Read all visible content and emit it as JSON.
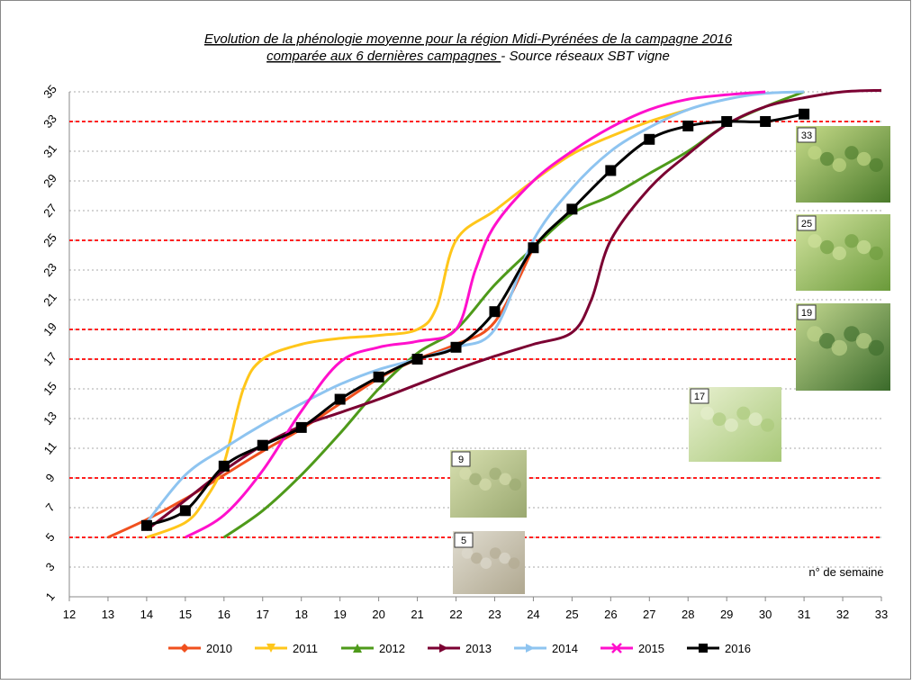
{
  "chart_data": {
    "type": "line",
    "title": "Evolution de la phénologie moyenne pour la région Midi-Pyrénées de la campagne 2016",
    "subtitle_underlined": "comparée aux 6 dernières campagnes ",
    "subtitle_rest": "- Source réseaux SBT vigne",
    "x_annotation": "n° de semaine",
    "xlim": [
      12,
      33
    ],
    "xticks": [
      12,
      13,
      14,
      15,
      16,
      17,
      18,
      19,
      20,
      21,
      22,
      23,
      24,
      25,
      26,
      27,
      28,
      29,
      30,
      31,
      32,
      33
    ],
    "ylim": [
      1,
      35
    ],
    "yticks": [
      1,
      3,
      5,
      7,
      9,
      11,
      13,
      15,
      17,
      19,
      21,
      23,
      25,
      27,
      29,
      31,
      33,
      35
    ],
    "grid": true,
    "reference_lines": [
      5,
      9,
      17,
      19,
      25,
      33
    ],
    "reference_color": "#ff2020",
    "photos": [
      {
        "label": "33"
      },
      {
        "label": "25"
      },
      {
        "label": "19"
      },
      {
        "label": "17"
      },
      {
        "label": "9"
      },
      {
        "label": "5"
      }
    ],
    "series": [
      {
        "name": "2010",
        "color": "#f0501e",
        "marker": "diamond",
        "x": [
          13,
          14,
          15,
          16,
          17,
          18,
          19,
          20,
          21,
          22,
          23,
          24
        ],
        "values": [
          5,
          6.2,
          7.6,
          9.2,
          10.8,
          12.3,
          14,
          15.7,
          17,
          18,
          19.5,
          24.5
        ]
      },
      {
        "name": "2011",
        "color": "#ffc61a",
        "marker": "triangle-down",
        "x": [
          14,
          15,
          15.5,
          16,
          16.5,
          17,
          18,
          19,
          20,
          21,
          21.5,
          22,
          23,
          24,
          25,
          26,
          27,
          28
        ],
        "values": [
          5,
          6,
          7.5,
          10,
          15,
          17,
          18,
          18.4,
          18.6,
          19,
          20.5,
          25,
          27,
          29,
          30.8,
          32,
          33,
          33.8
        ]
      },
      {
        "name": "2012",
        "color": "#4e9a1a",
        "marker": "triangle-up",
        "x": [
          16,
          17,
          18,
          19,
          20,
          21,
          22,
          23,
          24,
          25,
          26,
          27,
          28,
          29,
          30,
          31
        ],
        "values": [
          5,
          6.8,
          9.2,
          12,
          15,
          17.4,
          19,
          22,
          24.5,
          26.8,
          28,
          29.5,
          31,
          32.8,
          34,
          35
        ]
      },
      {
        "name": "2013",
        "color": "#7b0032",
        "marker": "arrow",
        "x": [
          14,
          15,
          16,
          17,
          18,
          19,
          20,
          21,
          22,
          23,
          24,
          25,
          25.5,
          26,
          27,
          28,
          29,
          30,
          31,
          32,
          33
        ],
        "values": [
          5.5,
          7.5,
          9.5,
          11.2,
          12.5,
          13.4,
          14.3,
          15.3,
          16.3,
          17.2,
          18,
          18.8,
          21,
          25,
          28.5,
          30.8,
          32.8,
          34,
          34.6,
          35,
          35.1
        ]
      },
      {
        "name": "2014",
        "color": "#8ec4f0",
        "marker": "arrow",
        "x": [
          14,
          15,
          16,
          17,
          18,
          19,
          20,
          21,
          22,
          23,
          24,
          25,
          26,
          27,
          28,
          29,
          30,
          31
        ],
        "values": [
          6,
          9.2,
          11,
          12.6,
          14,
          15.3,
          16.3,
          17,
          17.8,
          19,
          25,
          28.5,
          31,
          32.6,
          33.8,
          34.5,
          34.9,
          35
        ]
      },
      {
        "name": "2015",
        "color": "#ff10cc",
        "marker": "x",
        "x": [
          15,
          16,
          17,
          18,
          19,
          20,
          21,
          22,
          22.5,
          23,
          24,
          25,
          26,
          27,
          28,
          29,
          30
        ],
        "values": [
          5,
          6.5,
          9.5,
          13.5,
          16.8,
          17.8,
          18.2,
          19,
          23,
          26,
          29,
          31,
          32.6,
          33.8,
          34.5,
          34.8,
          35
        ]
      },
      {
        "name": "2016",
        "color": "#000000",
        "marker": "square",
        "show_markers": true,
        "x": [
          14,
          15,
          16,
          17,
          18,
          19,
          20,
          21,
          22,
          23,
          24,
          25,
          26,
          27,
          28,
          29,
          30,
          31
        ],
        "values": [
          5.8,
          6.8,
          9.8,
          11.2,
          12.4,
          14.3,
          15.8,
          17,
          17.8,
          20.2,
          24.5,
          27.1,
          29.7,
          31.8,
          32.7,
          33,
          33,
          33.5
        ]
      }
    ]
  }
}
